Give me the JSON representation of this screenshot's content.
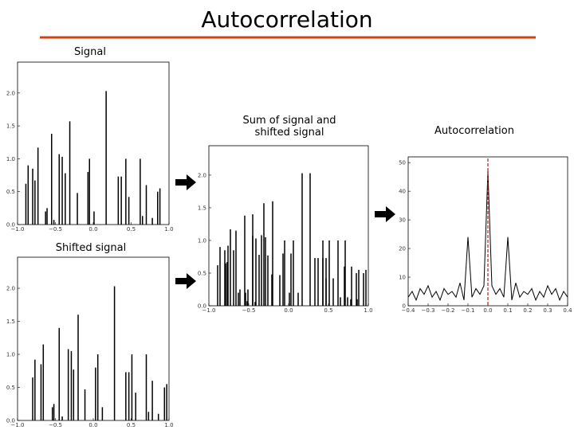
{
  "slide_title": "Autocorrelation",
  "chart_data": [
    {
      "type": "spike",
      "title": "Signal",
      "x": [
        -0.89,
        -0.86,
        -0.8,
        -0.77,
        -0.73,
        -0.63,
        -0.61,
        -0.55,
        -0.52,
        -0.45,
        -0.41,
        -0.37,
        -0.31,
        -0.21,
        -0.07,
        -0.05,
        0.01,
        0.17,
        0.33,
        0.37,
        0.43,
        0.47,
        0.62,
        0.65,
        0.7,
        0.78,
        0.85,
        0.88
      ],
      "values": [
        0.62,
        0.9,
        0.85,
        0.67,
        1.17,
        0.2,
        0.25,
        1.38,
        0.07,
        1.07,
        1.03,
        0.78,
        1.57,
        0.48,
        0.8,
        1.0,
        0.2,
        2.03,
        0.73,
        0.73,
        1.0,
        0.42,
        1.0,
        0.13,
        0.6,
        0.1,
        0.5,
        0.55
      ],
      "color": "#000000",
      "xlim": [
        -1,
        1
      ],
      "ylim": [
        0,
        2.47
      ],
      "xticks": [
        {
          "value": -1,
          "label": "−1.0"
        },
        {
          "value": -0.5,
          "label": "−0.5"
        },
        {
          "value": 0,
          "label": "0.0"
        },
        {
          "value": 0.5,
          "label": "0.5"
        },
        {
          "value": 1,
          "label": "1.0"
        }
      ],
      "yticks": [
        {
          "value": 0,
          "label": "0.0"
        },
        {
          "value": 0.5,
          "label": "0.5"
        },
        {
          "value": 1,
          "label": "1.0"
        },
        {
          "value": 1.5,
          "label": "1.5"
        },
        {
          "value": 2,
          "label": "2.0"
        }
      ]
    },
    {
      "type": "spike",
      "title": "Shifted signal",
      "x": [
        -0.8,
        -0.77,
        -0.69,
        -0.66,
        -0.54,
        -0.52,
        -0.45,
        -0.41,
        -0.33,
        -0.29,
        -0.26,
        -0.2,
        -0.11,
        0.03,
        0.06,
        0.12,
        0.28,
        0.43,
        0.47,
        0.51,
        0.56,
        0.7,
        0.73,
        0.78,
        0.86,
        0.94,
        0.97
      ],
      "values": [
        0.65,
        0.92,
        0.85,
        1.15,
        0.2,
        0.25,
        1.4,
        0.06,
        1.08,
        1.05,
        0.77,
        1.6,
        0.47,
        0.8,
        1.0,
        0.2,
        2.03,
        0.73,
        0.73,
        1.0,
        0.42,
        1.0,
        0.13,
        0.6,
        0.1,
        0.5,
        0.55
      ],
      "color": "#000000",
      "xlim": [
        -1,
        1
      ],
      "ylim": [
        0,
        2.47
      ],
      "xticks": [
        {
          "value": -1,
          "label": "−1.0"
        },
        {
          "value": -0.5,
          "label": "−0.5"
        },
        {
          "value": 0,
          "label": "0.0"
        },
        {
          "value": 0.5,
          "label": "0.5"
        },
        {
          "value": 1,
          "label": "1.0"
        }
      ],
      "yticks": [
        {
          "value": 0,
          "label": "0.0"
        },
        {
          "value": 0.5,
          "label": "0.5"
        },
        {
          "value": 1,
          "label": "1.0"
        },
        {
          "value": 1.5,
          "label": "1.5"
        },
        {
          "value": 2,
          "label": "2.0"
        }
      ]
    },
    {
      "type": "spike",
      "title": "Sum of signal and shifted signal",
      "x": [
        -0.89,
        -0.86,
        -0.8,
        -0.77,
        -0.73,
        -0.63,
        -0.61,
        -0.55,
        -0.52,
        -0.45,
        -0.41,
        -0.37,
        -0.31,
        -0.21,
        -0.07,
        -0.05,
        0.01,
        0.17,
        0.33,
        0.37,
        0.43,
        0.47,
        0.62,
        0.65,
        0.7,
        0.78,
        0.85,
        0.88,
        -0.79,
        -0.76,
        -0.69,
        -0.66,
        -0.54,
        -0.51,
        -0.45,
        -0.42,
        -0.34,
        -0.29,
        -0.26,
        -0.2,
        -0.11,
        0.03,
        0.06,
        0.12,
        0.27,
        0.43,
        0.47,
        0.51,
        0.56,
        0.71,
        0.74,
        0.79,
        0.86,
        0.94,
        0.97
      ],
      "values": [
        0.62,
        0.9,
        0.85,
        0.67,
        1.17,
        0.2,
        0.25,
        1.38,
        0.07,
        1.07,
        1.03,
        0.78,
        1.57,
        0.48,
        0.8,
        1.0,
        0.2,
        2.03,
        0.73,
        0.73,
        1.0,
        0.42,
        1.0,
        0.13,
        0.6,
        0.1,
        0.5,
        0.55,
        0.65,
        0.92,
        0.85,
        1.15,
        0.2,
        0.25,
        1.4,
        0.06,
        1.08,
        1.05,
        0.77,
        1.6,
        0.47,
        0.8,
        1.0,
        0.2,
        2.03,
        0.73,
        0.73,
        1.0,
        0.42,
        1.0,
        0.13,
        0.6,
        0.1,
        0.5,
        0.55
      ],
      "color": "#000000",
      "xlim": [
        -1,
        1
      ],
      "ylim": [
        0,
        2.45
      ],
      "xticks": [
        {
          "value": -1,
          "label": "−1.0"
        },
        {
          "value": -0.5,
          "label": "−0.5"
        },
        {
          "value": 0,
          "label": "0.0"
        },
        {
          "value": 0.5,
          "label": "0.5"
        },
        {
          "value": 1,
          "label": "1.0"
        }
      ],
      "yticks": [
        {
          "value": 0,
          "label": "0.0"
        },
        {
          "value": 0.5,
          "label": "0.5"
        },
        {
          "value": 1,
          "label": "1.0"
        },
        {
          "value": 1.5,
          "label": "1.5"
        },
        {
          "value": 2,
          "label": "2.0"
        }
      ]
    },
    {
      "type": "line",
      "title": "Autocorrelation",
      "x": [
        -0.4,
        -0.38,
        -0.36,
        -0.34,
        -0.32,
        -0.3,
        -0.28,
        -0.26,
        -0.24,
        -0.22,
        -0.2,
        -0.18,
        -0.16,
        -0.14,
        -0.12,
        -0.1,
        -0.08,
        -0.06,
        -0.04,
        -0.02,
        0,
        0.02,
        0.04,
        0.06,
        0.08,
        0.1,
        0.12,
        0.14,
        0.16,
        0.18,
        0.2,
        0.22,
        0.24,
        0.26,
        0.28,
        0.3,
        0.32,
        0.34,
        0.36,
        0.38,
        0.4
      ],
      "values": [
        3,
        5,
        2,
        6,
        4,
        7,
        3,
        5,
        2,
        6,
        4,
        5,
        3,
        8,
        2,
        24,
        3,
        6,
        4,
        7,
        47,
        7,
        4,
        6,
        3,
        24,
        2,
        8,
        3,
        5,
        4,
        6,
        2,
        5,
        3,
        7,
        4,
        6,
        2,
        5,
        3
      ],
      "color": "#000000",
      "vline_x": 0,
      "vline_color": "#aa2222",
      "xlim": [
        -0.4,
        0.4
      ],
      "ylim": [
        0,
        52
      ],
      "xticks": [
        {
          "value": -0.4,
          "label": "−0.4"
        },
        {
          "value": -0.3,
          "label": "−0.3"
        },
        {
          "value": -0.2,
          "label": "−0.2"
        },
        {
          "value": -0.1,
          "label": "−0.1"
        },
        {
          "value": 0,
          "label": "0.0"
        },
        0.1,
        0.2,
        0.3,
        0.4
      ],
      "yticks": [
        0,
        10,
        20,
        30,
        40,
        50
      ]
    }
  ]
}
